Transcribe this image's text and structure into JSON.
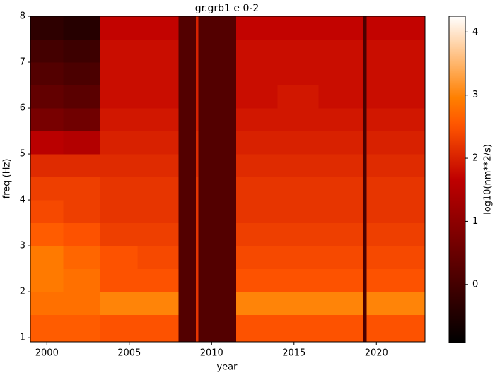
{
  "chart_data": {
    "type": "heatmap",
    "title": "gr.grb1 e 0-2",
    "x_label": "year",
    "y_label": "freq (Hz)",
    "colorbar_label": "log10(nm**2/s)",
    "colormap": "gist_heat",
    "x_edges": [
      1999.0,
      2001,
      2003.2,
      2005.5,
      2008,
      2009.05,
      2009.2,
      2011.5,
      2014,
      2016.5,
      2019.2,
      2019.4,
      2021,
      2022.95
    ],
    "y_edges": [
      0.91,
      1.5,
      2,
      2.5,
      3,
      3.5,
      4,
      4.5,
      5,
      5.5,
      6,
      6.5,
      7,
      7.5,
      8
    ],
    "z": [
      [
        2.6,
        2.6,
        2.5,
        2.5,
        0.2,
        2.2,
        0.2,
        2.5,
        2.5,
        2.5,
        0.1,
        2.5,
        2.5
      ],
      [
        2.8,
        2.8,
        3.0,
        3.0,
        0.2,
        2.2,
        0.2,
        3.0,
        3.0,
        3.0,
        0.1,
        3.0,
        3.0
      ],
      [
        2.9,
        2.8,
        2.5,
        2.5,
        0.2,
        2.2,
        0.2,
        2.5,
        2.5,
        2.5,
        0.1,
        2.5,
        2.5
      ],
      [
        2.9,
        2.7,
        2.5,
        2.4,
        0.2,
        2.2,
        0.2,
        2.4,
        2.4,
        2.4,
        0.1,
        2.4,
        2.4
      ],
      [
        2.6,
        2.5,
        2.3,
        2.3,
        0.2,
        2.2,
        0.2,
        2.3,
        2.3,
        2.3,
        0.1,
        2.3,
        2.3
      ],
      [
        2.4,
        2.3,
        2.2,
        2.2,
        0.2,
        2.2,
        0.2,
        2.2,
        2.2,
        2.2,
        0.1,
        2.2,
        2.2
      ],
      [
        2.3,
        2.3,
        2.2,
        2.2,
        0.2,
        2.2,
        0.2,
        2.2,
        2.2,
        2.2,
        0.1,
        2.2,
        2.2
      ],
      [
        2.1,
        2.1,
        2.1,
        2.1,
        0.2,
        2.1,
        0.2,
        2.1,
        2.1,
        2.1,
        0.1,
        2.1,
        2.1
      ],
      [
        1.6,
        1.5,
        2.0,
        2.0,
        0.2,
        2.1,
        0.2,
        2.0,
        2.0,
        2.0,
        0.1,
        2.0,
        2.0
      ],
      [
        0.7,
        0.6,
        1.9,
        1.9,
        0.2,
        2.0,
        0.2,
        1.9,
        1.9,
        1.9,
        0.1,
        1.9,
        1.9
      ],
      [
        0.4,
        0.3,
        1.8,
        1.8,
        0.2,
        2.0,
        0.2,
        1.8,
        1.9,
        1.8,
        0.1,
        1.8,
        1.8
      ],
      [
        0.2,
        0.1,
        1.8,
        1.8,
        0.2,
        2.0,
        0.2,
        1.8,
        1.8,
        1.8,
        0.1,
        1.8,
        1.8
      ],
      [
        0.0,
        -0.1,
        1.8,
        1.8,
        0.2,
        2.0,
        0.2,
        1.8,
        1.8,
        1.8,
        0.1,
        1.8,
        1.8
      ],
      [
        -0.3,
        -0.4,
        1.7,
        1.7,
        0.2,
        2.0,
        0.2,
        1.7,
        1.7,
        1.7,
        0.1,
        1.7,
        1.7
      ]
    ],
    "xlim": [
      1999.0,
      2022.95
    ],
    "xticks": [
      2000,
      2005,
      2010,
      2015,
      2020
    ],
    "ylim": [
      0.91,
      8
    ],
    "yticks": [
      1,
      2,
      3,
      4,
      5,
      6,
      7,
      8
    ],
    "clim": [
      -0.92,
      4.25
    ],
    "cticks": [
      0,
      1,
      2,
      3,
      4
    ]
  }
}
